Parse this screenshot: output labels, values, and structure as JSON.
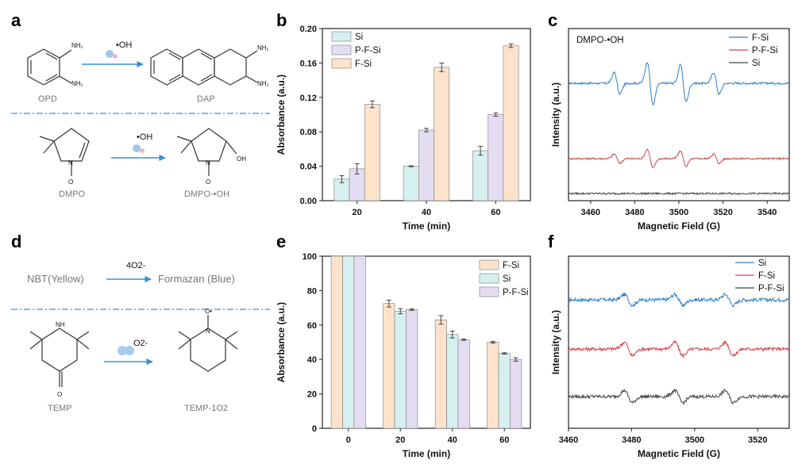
{
  "colors": {
    "F-Si": "#fde3cc",
    "Si": "#d6efef",
    "P-F-Si": "#e4dcf0",
    "arrow": "#3c8fd0",
    "dash": "#3c8fd0",
    "epr_blue": "#2e7ec7",
    "epr_red": "#d64545",
    "epr_gray": "#444444"
  },
  "panel_labels": {
    "a": "a",
    "b": "b",
    "c": "c",
    "d": "d",
    "e": "e",
    "f": "f"
  },
  "panel_a": {
    "reagent": "•OH",
    "opd_label": "OPD",
    "dap_label": "DAP",
    "nh2": "NH₂",
    "dmpo_label": "DMPO",
    "adduct_label": "DMPO-•OH",
    "oh_group": "OH",
    "n_plus": "N",
    "o_minus": "O"
  },
  "panel_d": {
    "nbt": "NBT(Yellow)",
    "formazan": "Formazan (Blue)",
    "reagent_top": "4O2-",
    "reagent_bottom": "O2-",
    "temp_label": "TEMP",
    "temp_product_label": "TEMP-1O2",
    "nh": "NH",
    "o": "O",
    "n": "N",
    "o_radical": "O•"
  },
  "chart_data": [
    {
      "panel": "b",
      "type": "bar",
      "categories": [
        "20",
        "40",
        "60"
      ],
      "series": [
        {
          "name": "Si",
          "values": [
            0.025,
            0.04,
            0.058
          ],
          "errors": [
            0.004,
            0.0005,
            0.005
          ]
        },
        {
          "name": "P-F-Si",
          "values": [
            0.037,
            0.082,
            0.1
          ],
          "errors": [
            0.006,
            0.002,
            0.002
          ]
        },
        {
          "name": "F-Si",
          "values": [
            0.112,
            0.155,
            0.18
          ],
          "errors": [
            0.004,
            0.005,
            0.002
          ]
        }
      ],
      "xlabel": "Time (min)",
      "ylabel": "Absorbance (a.u.)",
      "ylim": [
        0,
        0.2
      ],
      "yticks": [
        "0.00",
        "0.04",
        "0.08",
        "0.12",
        "0.16",
        "0.20"
      ],
      "legend": "top-left"
    },
    {
      "panel": "c",
      "type": "line",
      "annotation": "DMPO-•OH",
      "series": [
        {
          "name": "F-Si"
        },
        {
          "name": "P-F-Si"
        },
        {
          "name": "Si"
        }
      ],
      "xlabel": "Magnetic Field (G)",
      "ylabel": "Intensity (a.u.)",
      "xlim": [
        3450,
        3550
      ],
      "xticks": [
        "3460",
        "3480",
        "3500",
        "3520",
        "3540"
      ],
      "peaks": [
        3472,
        3487,
        3502,
        3517
      ],
      "legend": "top-right"
    },
    {
      "panel": "e",
      "type": "bar",
      "categories": [
        "0",
        "20",
        "40",
        "60"
      ],
      "series": [
        {
          "name": "F-Si",
          "values": [
            100,
            72.5,
            63,
            50
          ],
          "errors": [
            0,
            2,
            2.5,
            0.5
          ]
        },
        {
          "name": "Si",
          "values": [
            100,
            68,
            54.5,
            43.5
          ],
          "errors": [
            0,
            1.5,
            2,
            0.4
          ]
        },
        {
          "name": "P-F-Si",
          "values": [
            100,
            69,
            51.5,
            40
          ],
          "errors": [
            0,
            0.5,
            0.4,
            1
          ]
        }
      ],
      "xlabel": "Time (min)",
      "ylabel": "Absorbance (a.u.)",
      "ylim": [
        0,
        100
      ],
      "yticks": [
        "0",
        "20",
        "40",
        "60",
        "80",
        "100"
      ],
      "legend": "top-right"
    },
    {
      "panel": "f",
      "type": "line",
      "series": [
        {
          "name": "Si"
        },
        {
          "name": "F-Si"
        },
        {
          "name": "P-F-Si"
        }
      ],
      "xlabel": "Magnetic Field (G)",
      "ylabel": "Intensity (a.u.)",
      "xlim": [
        3460,
        3530
      ],
      "xticks": [
        "3460",
        "3480",
        "3500",
        "3520"
      ],
      "peaks": [
        3479,
        3495,
        3511
      ],
      "legend": "top-right"
    }
  ]
}
